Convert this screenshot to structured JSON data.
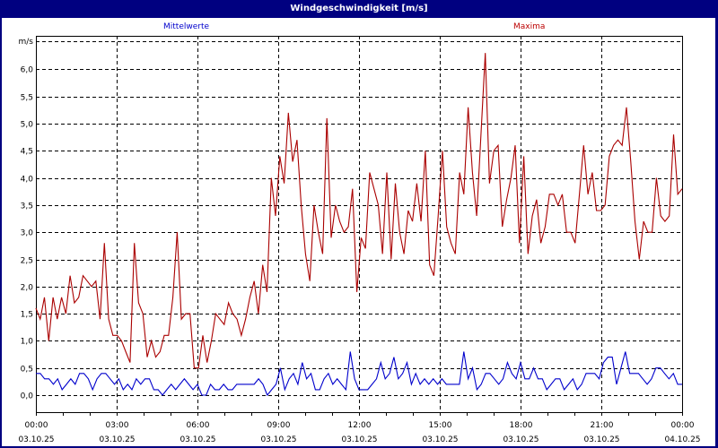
{
  "window": {
    "title": "Windgeschwindigkeit [m/s]"
  },
  "legend": {
    "mean_label": "Mittelwerte",
    "max_label": "Maxima"
  },
  "colors": {
    "title_bg": "#000080",
    "mean": "#0000cc",
    "max": "#aa0000",
    "grid": "#000000"
  },
  "chart_data": {
    "type": "line",
    "title": "Windgeschwindigkeit [m/s]",
    "xlabel": "",
    "ylabel": "m/s",
    "ylim": [
      -0.3,
      6.5
    ],
    "yticks": [
      "0,0",
      "0,5",
      "1,0",
      "1,5",
      "2,0",
      "2,5",
      "3,0",
      "3,5",
      "4,0",
      "4,5",
      "5,0",
      "5,5",
      "6,0"
    ],
    "ytick_values": [
      0,
      0.5,
      1,
      1.5,
      2,
      2.5,
      3,
      3.5,
      4,
      4.5,
      5,
      5.5,
      6
    ],
    "xticks": [
      {
        "time": "00:00",
        "date": "03.10.25"
      },
      {
        "time": "03:00",
        "date": "03.10.25"
      },
      {
        "time": "06:00",
        "date": "03.10.25"
      },
      {
        "time": "09:00",
        "date": "03.10.25"
      },
      {
        "time": "12:00",
        "date": "03.10.25"
      },
      {
        "time": "15:00",
        "date": "03.10.25"
      },
      {
        "time": "18:00",
        "date": "03.10.25"
      },
      {
        "time": "21:00",
        "date": "03.10.25"
      },
      {
        "time": "00:00",
        "date": "04.10.25"
      }
    ],
    "x_interval_minutes": 10,
    "grid": true,
    "legend_position": "top",
    "series": [
      {
        "name": "Mittelwerte",
        "color": "#0000cc",
        "values": [
          0.4,
          0.4,
          0.3,
          0.3,
          0.2,
          0.3,
          0.1,
          0.2,
          0.3,
          0.2,
          0.4,
          0.4,
          0.3,
          0.1,
          0.3,
          0.4,
          0.4,
          0.3,
          0.2,
          0.3,
          0.1,
          0.2,
          0.1,
          0.3,
          0.2,
          0.3,
          0.3,
          0.1,
          0.1,
          0.0,
          0.1,
          0.2,
          0.1,
          0.2,
          0.3,
          0.2,
          0.1,
          0.2,
          0.0,
          0.0,
          0.2,
          0.1,
          0.1,
          0.2,
          0.1,
          0.1,
          0.2,
          0.2,
          0.2,
          0.2,
          0.2,
          0.3,
          0.2,
          0.0,
          0.1,
          0.2,
          0.5,
          0.1,
          0.3,
          0.4,
          0.2,
          0.6,
          0.3,
          0.4,
          0.1,
          0.1,
          0.3,
          0.4,
          0.2,
          0.3,
          0.2,
          0.1,
          0.8,
          0.3,
          0.1,
          0.1,
          0.1,
          0.2,
          0.3,
          0.6,
          0.3,
          0.4,
          0.7,
          0.3,
          0.4,
          0.6,
          0.2,
          0.4,
          0.2,
          0.3,
          0.2,
          0.3,
          0.2,
          0.3,
          0.2,
          0.2,
          0.2,
          0.2,
          0.8,
          0.3,
          0.5,
          0.1,
          0.2,
          0.4,
          0.4,
          0.3,
          0.2,
          0.3,
          0.6,
          0.4,
          0.3,
          0.6,
          0.3,
          0.3,
          0.5,
          0.3,
          0.3,
          0.1,
          0.2,
          0.3,
          0.3,
          0.1,
          0.2,
          0.3,
          0.1,
          0.2,
          0.4,
          0.4,
          0.4,
          0.3,
          0.6,
          0.7,
          0.7,
          0.2,
          0.5,
          0.8,
          0.4,
          0.4,
          0.4,
          0.3,
          0.2,
          0.3,
          0.5,
          0.5,
          0.4,
          0.3,
          0.4,
          0.2,
          0.2
        ]
      },
      {
        "name": "Maxima",
        "color": "#aa0000",
        "values": [
          1.6,
          1.4,
          1.8,
          1.0,
          1.8,
          1.4,
          1.8,
          1.5,
          2.2,
          1.7,
          1.8,
          2.2,
          2.1,
          2.0,
          2.1,
          1.4,
          2.8,
          1.4,
          1.1,
          1.1,
          1.0,
          0.8,
          0.6,
          2.8,
          1.7,
          1.5,
          0.7,
          1.0,
          0.7,
          0.8,
          1.1,
          1.1,
          1.8,
          3.0,
          1.4,
          1.5,
          1.5,
          0.5,
          0.5,
          1.1,
          0.6,
          1.0,
          1.5,
          1.4,
          1.3,
          1.7,
          1.5,
          1.4,
          1.1,
          1.4,
          1.8,
          2.1,
          1.5,
          2.4,
          1.9,
          4.0,
          3.3,
          4.4,
          3.9,
          5.2,
          4.3,
          4.7,
          3.5,
          2.6,
          2.1,
          3.5,
          3.0,
          2.6,
          5.1,
          2.9,
          3.5,
          3.2,
          3.0,
          3.1,
          3.8,
          1.9,
          2.9,
          2.7,
          4.1,
          3.8,
          3.5,
          2.6,
          4.1,
          2.5,
          3.9,
          3.0,
          2.6,
          3.4,
          3.2,
          3.9,
          3.2,
          4.5,
          2.4,
          2.2,
          3.3,
          4.5,
          3.1,
          2.8,
          2.6,
          4.1,
          3.7,
          5.3,
          4.1,
          3.3,
          4.8,
          6.3,
          3.9,
          4.5,
          4.6,
          3.1,
          3.6,
          4.0,
          4.6,
          2.8,
          4.4,
          2.6,
          3.3,
          3.6,
          2.8,
          3.1,
          3.7,
          3.7,
          3.5,
          3.7,
          3.0,
          3.0,
          2.8,
          3.7,
          4.6,
          3.7,
          4.1,
          3.4,
          3.4,
          3.5,
          4.4,
          4.6,
          4.7,
          4.6,
          5.3,
          4.3,
          3.2,
          2.5,
          3.2,
          3.0,
          3.0,
          4.0,
          3.3,
          3.2,
          3.3,
          4.8,
          3.7,
          3.8
        ]
      }
    ]
  }
}
